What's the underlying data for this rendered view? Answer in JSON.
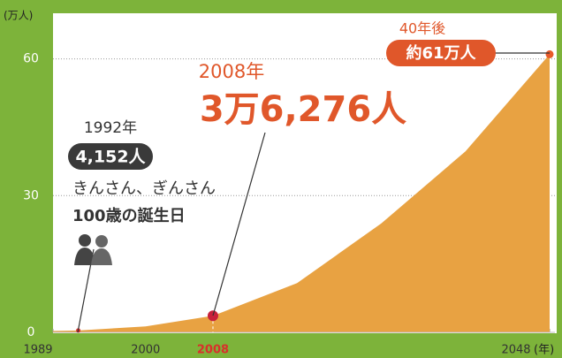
{
  "chart_data": {
    "type": "area",
    "y_axis_label": "(万人)",
    "x_axis_unit": "(年)",
    "x": [
      1989,
      1992,
      2000,
      2008,
      2018,
      2028,
      2038,
      2048
    ],
    "series": [
      {
        "color": "#e8a242",
        "values": [
          0.3078,
          0.4152,
          1.3,
          3.6276,
          10.8,
          23.9,
          39.7,
          61
        ],
        "point_colors": [
          null,
          "#d9302b",
          null,
          "#c8213a",
          null,
          null,
          null,
          "#e85a2a"
        ]
      }
    ],
    "xlim": [
      1989,
      2048
    ],
    "xticks": [
      1989,
      2000,
      2008,
      2048
    ],
    "xtick_colors": [
      "#333333",
      "#333333",
      "#d9302b",
      "#333333"
    ],
    "ylim": [
      0,
      70
    ],
    "yticks": [
      0,
      30,
      60
    ],
    "grid": true,
    "annotations": {
      "a1992": {
        "year": "1992年",
        "count": "4,152人",
        "line1": "きんさん、ぎんさん",
        "line2": "100歳の誕生日"
      },
      "a2008": {
        "year": "2008年",
        "count": "3万6,276人"
      },
      "a2048": {
        "year": "40年後",
        "count": "約61万人"
      }
    }
  }
}
